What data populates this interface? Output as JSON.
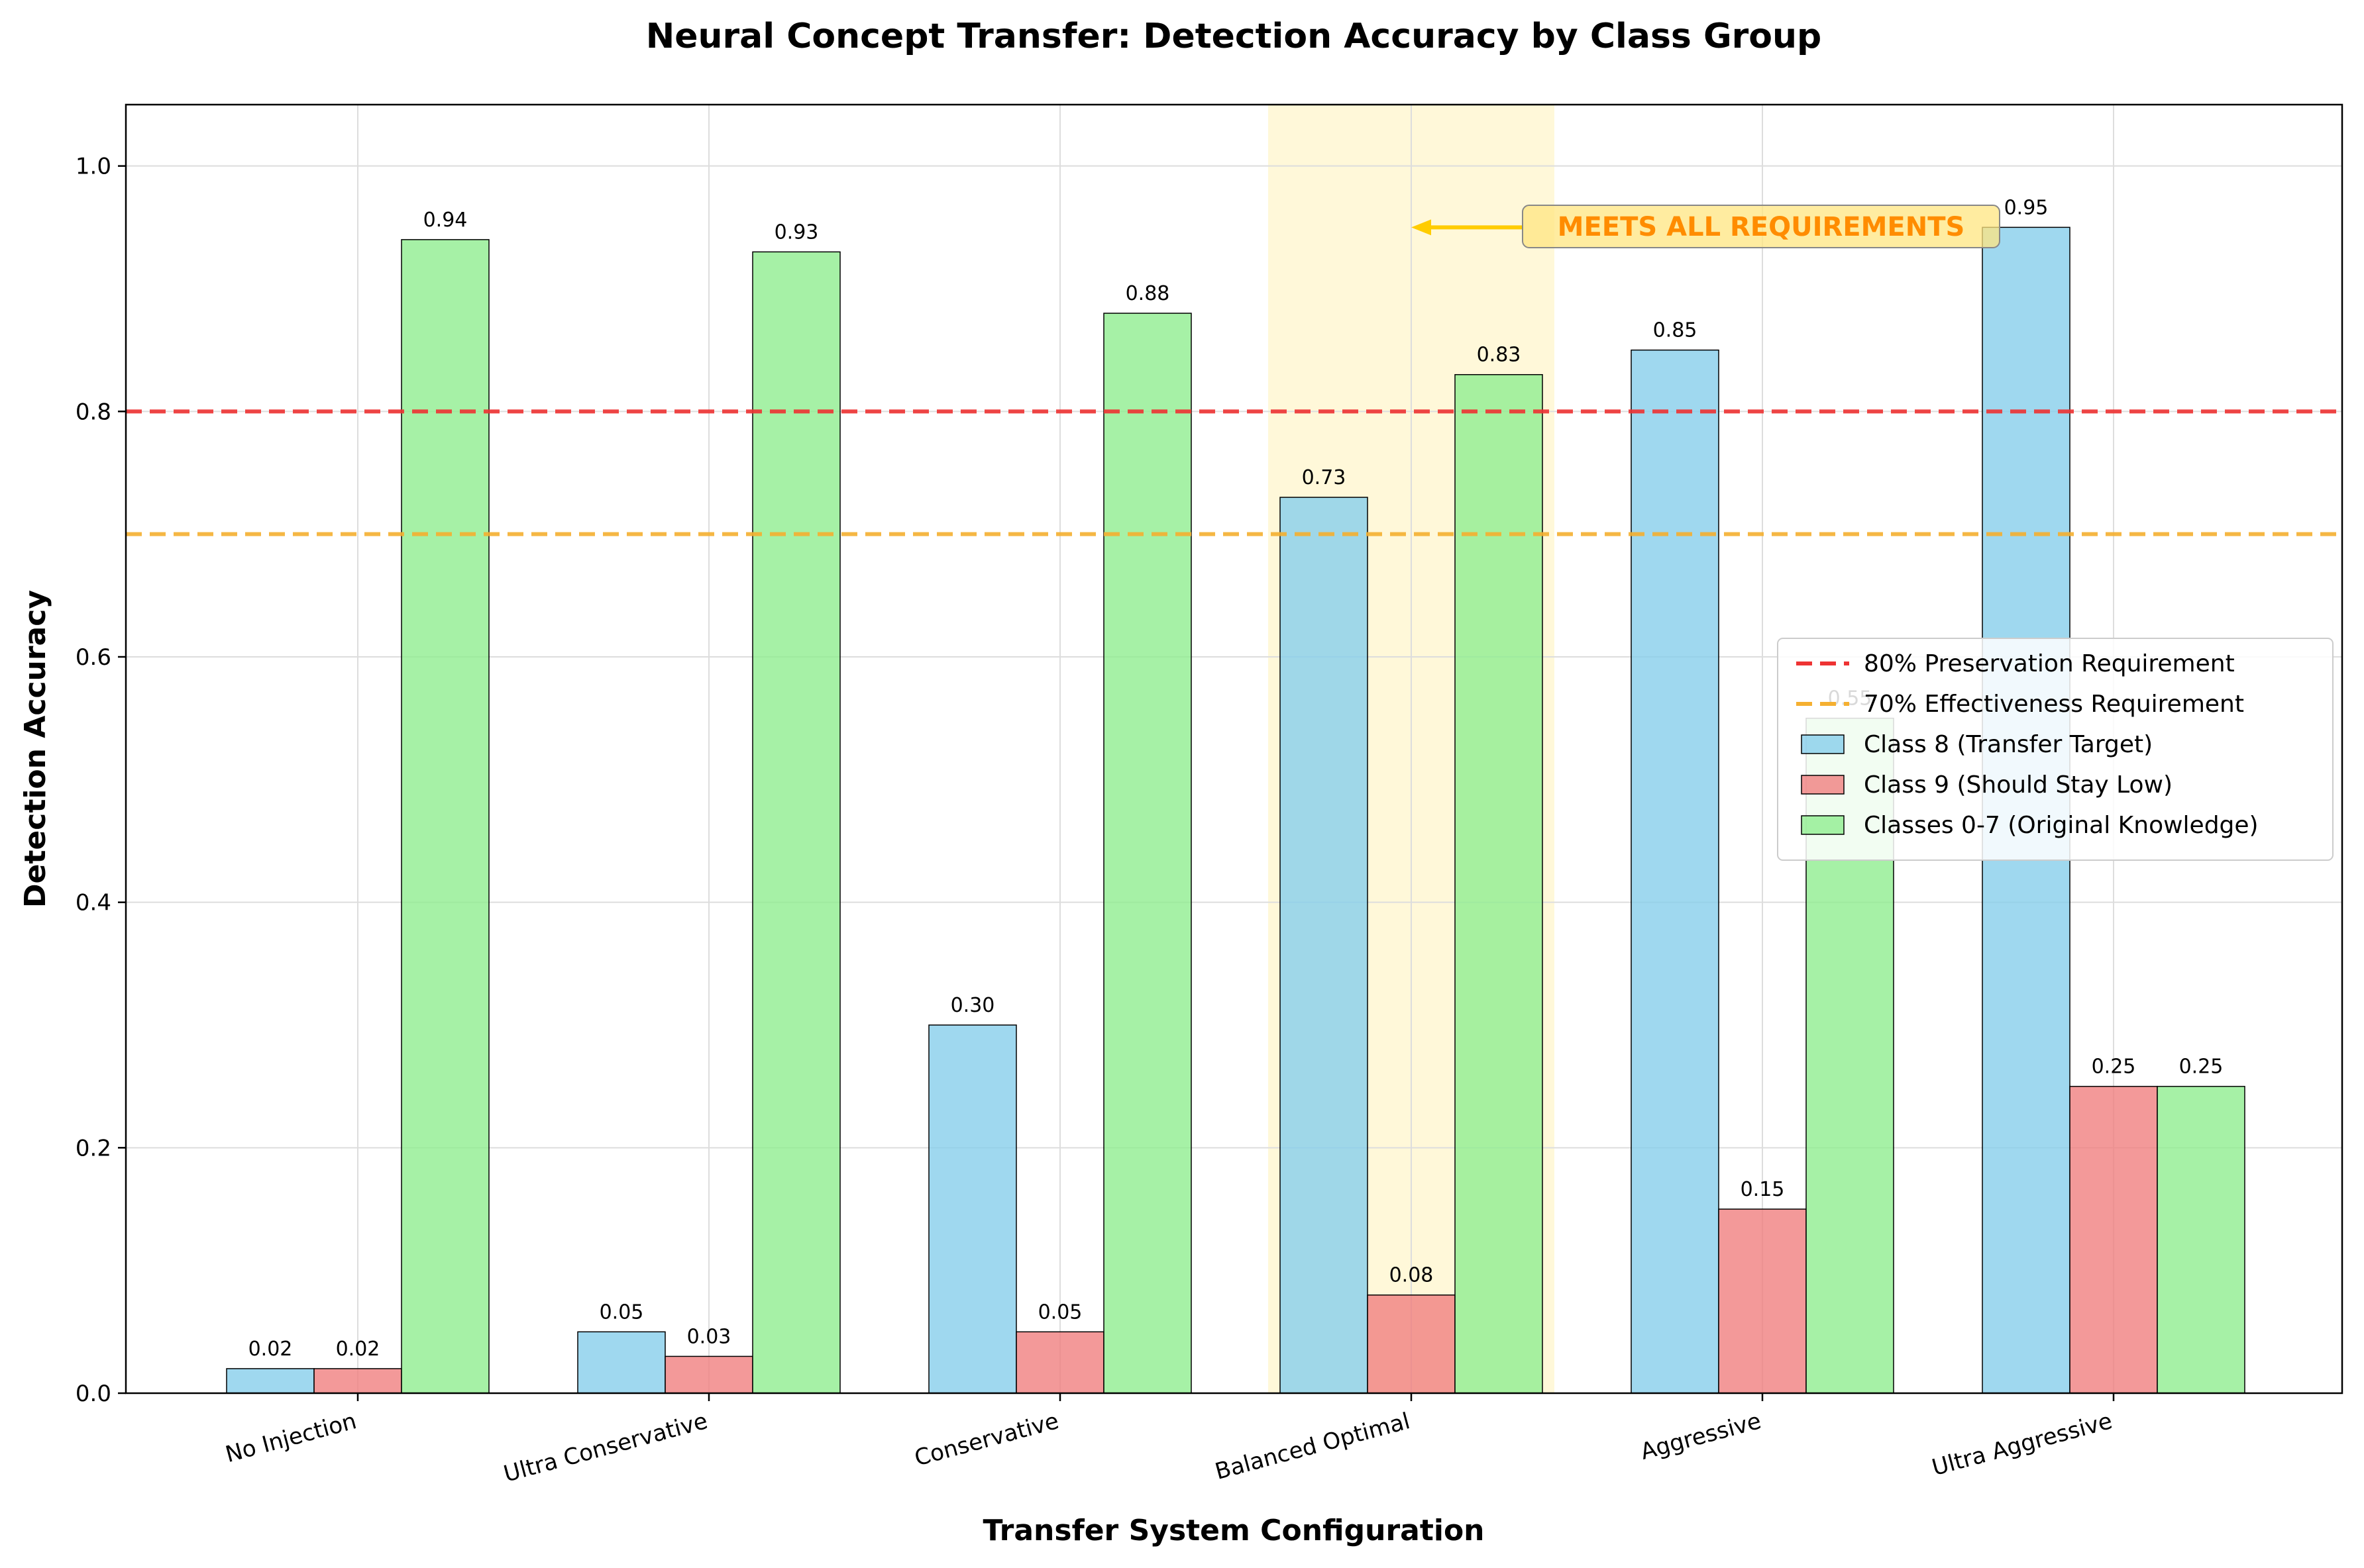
{
  "chart_data": {
    "type": "bar",
    "title": "Neural Concept Transfer: Detection Accuracy by Class Group",
    "xlabel": "Transfer System Configuration",
    "ylabel": "Detection Accuracy",
    "ylim": [
      0,
      1.05
    ],
    "yticks": [
      "0.0",
      "0.2",
      "0.4",
      "0.6",
      "0.8",
      "1.0"
    ],
    "grid": true,
    "legend_position": "center-right",
    "categories": [
      "No Injection",
      "Ultra Conservative",
      "Conservative",
      "Balanced Optimal",
      "Aggressive",
      "Ultra Aggressive"
    ],
    "series": [
      {
        "name": "Class 8 (Transfer Target)",
        "color": "#87ceeb",
        "values": [
          0.02,
          0.05,
          0.3,
          0.73,
          0.85,
          0.95
        ],
        "value_labels": [
          "0.02",
          "0.05",
          "0.30",
          "0.73",
          "0.85",
          "0.95"
        ]
      },
      {
        "name": "Class 9 (Should Stay Low)",
        "color": "#f08080",
        "values": [
          0.02,
          0.03,
          0.05,
          0.08,
          0.15,
          0.25
        ],
        "value_labels": [
          "0.02",
          "0.03",
          "0.05",
          "0.08",
          "0.15",
          "0.25"
        ]
      },
      {
        "name": "Classes 0-7 (Original Knowledge)",
        "color": "#90ee90",
        "values": [
          0.94,
          0.93,
          0.88,
          0.83,
          0.55,
          0.25
        ],
        "value_labels": [
          "0.94",
          "0.93",
          "0.88",
          "0.83",
          "0.55",
          "0.25"
        ]
      }
    ],
    "reference_lines": [
      {
        "name": "80% Preservation Requirement",
        "value": 0.8,
        "color": "#ee3333",
        "style": "dashed"
      },
      {
        "name": "70% Effectiveness Requirement",
        "value": 0.7,
        "color": "#f5b030",
        "style": "dashed"
      }
    ],
    "highlight": {
      "category": "Balanced Optimal",
      "color": "#fff5cc"
    },
    "annotation": {
      "text": "MEETS ALL REQUIREMENTS",
      "target_category": "Balanced Optimal",
      "target_value": 0.95,
      "color": "#ff8c00",
      "arrow_color": "#ffcc00"
    }
  }
}
